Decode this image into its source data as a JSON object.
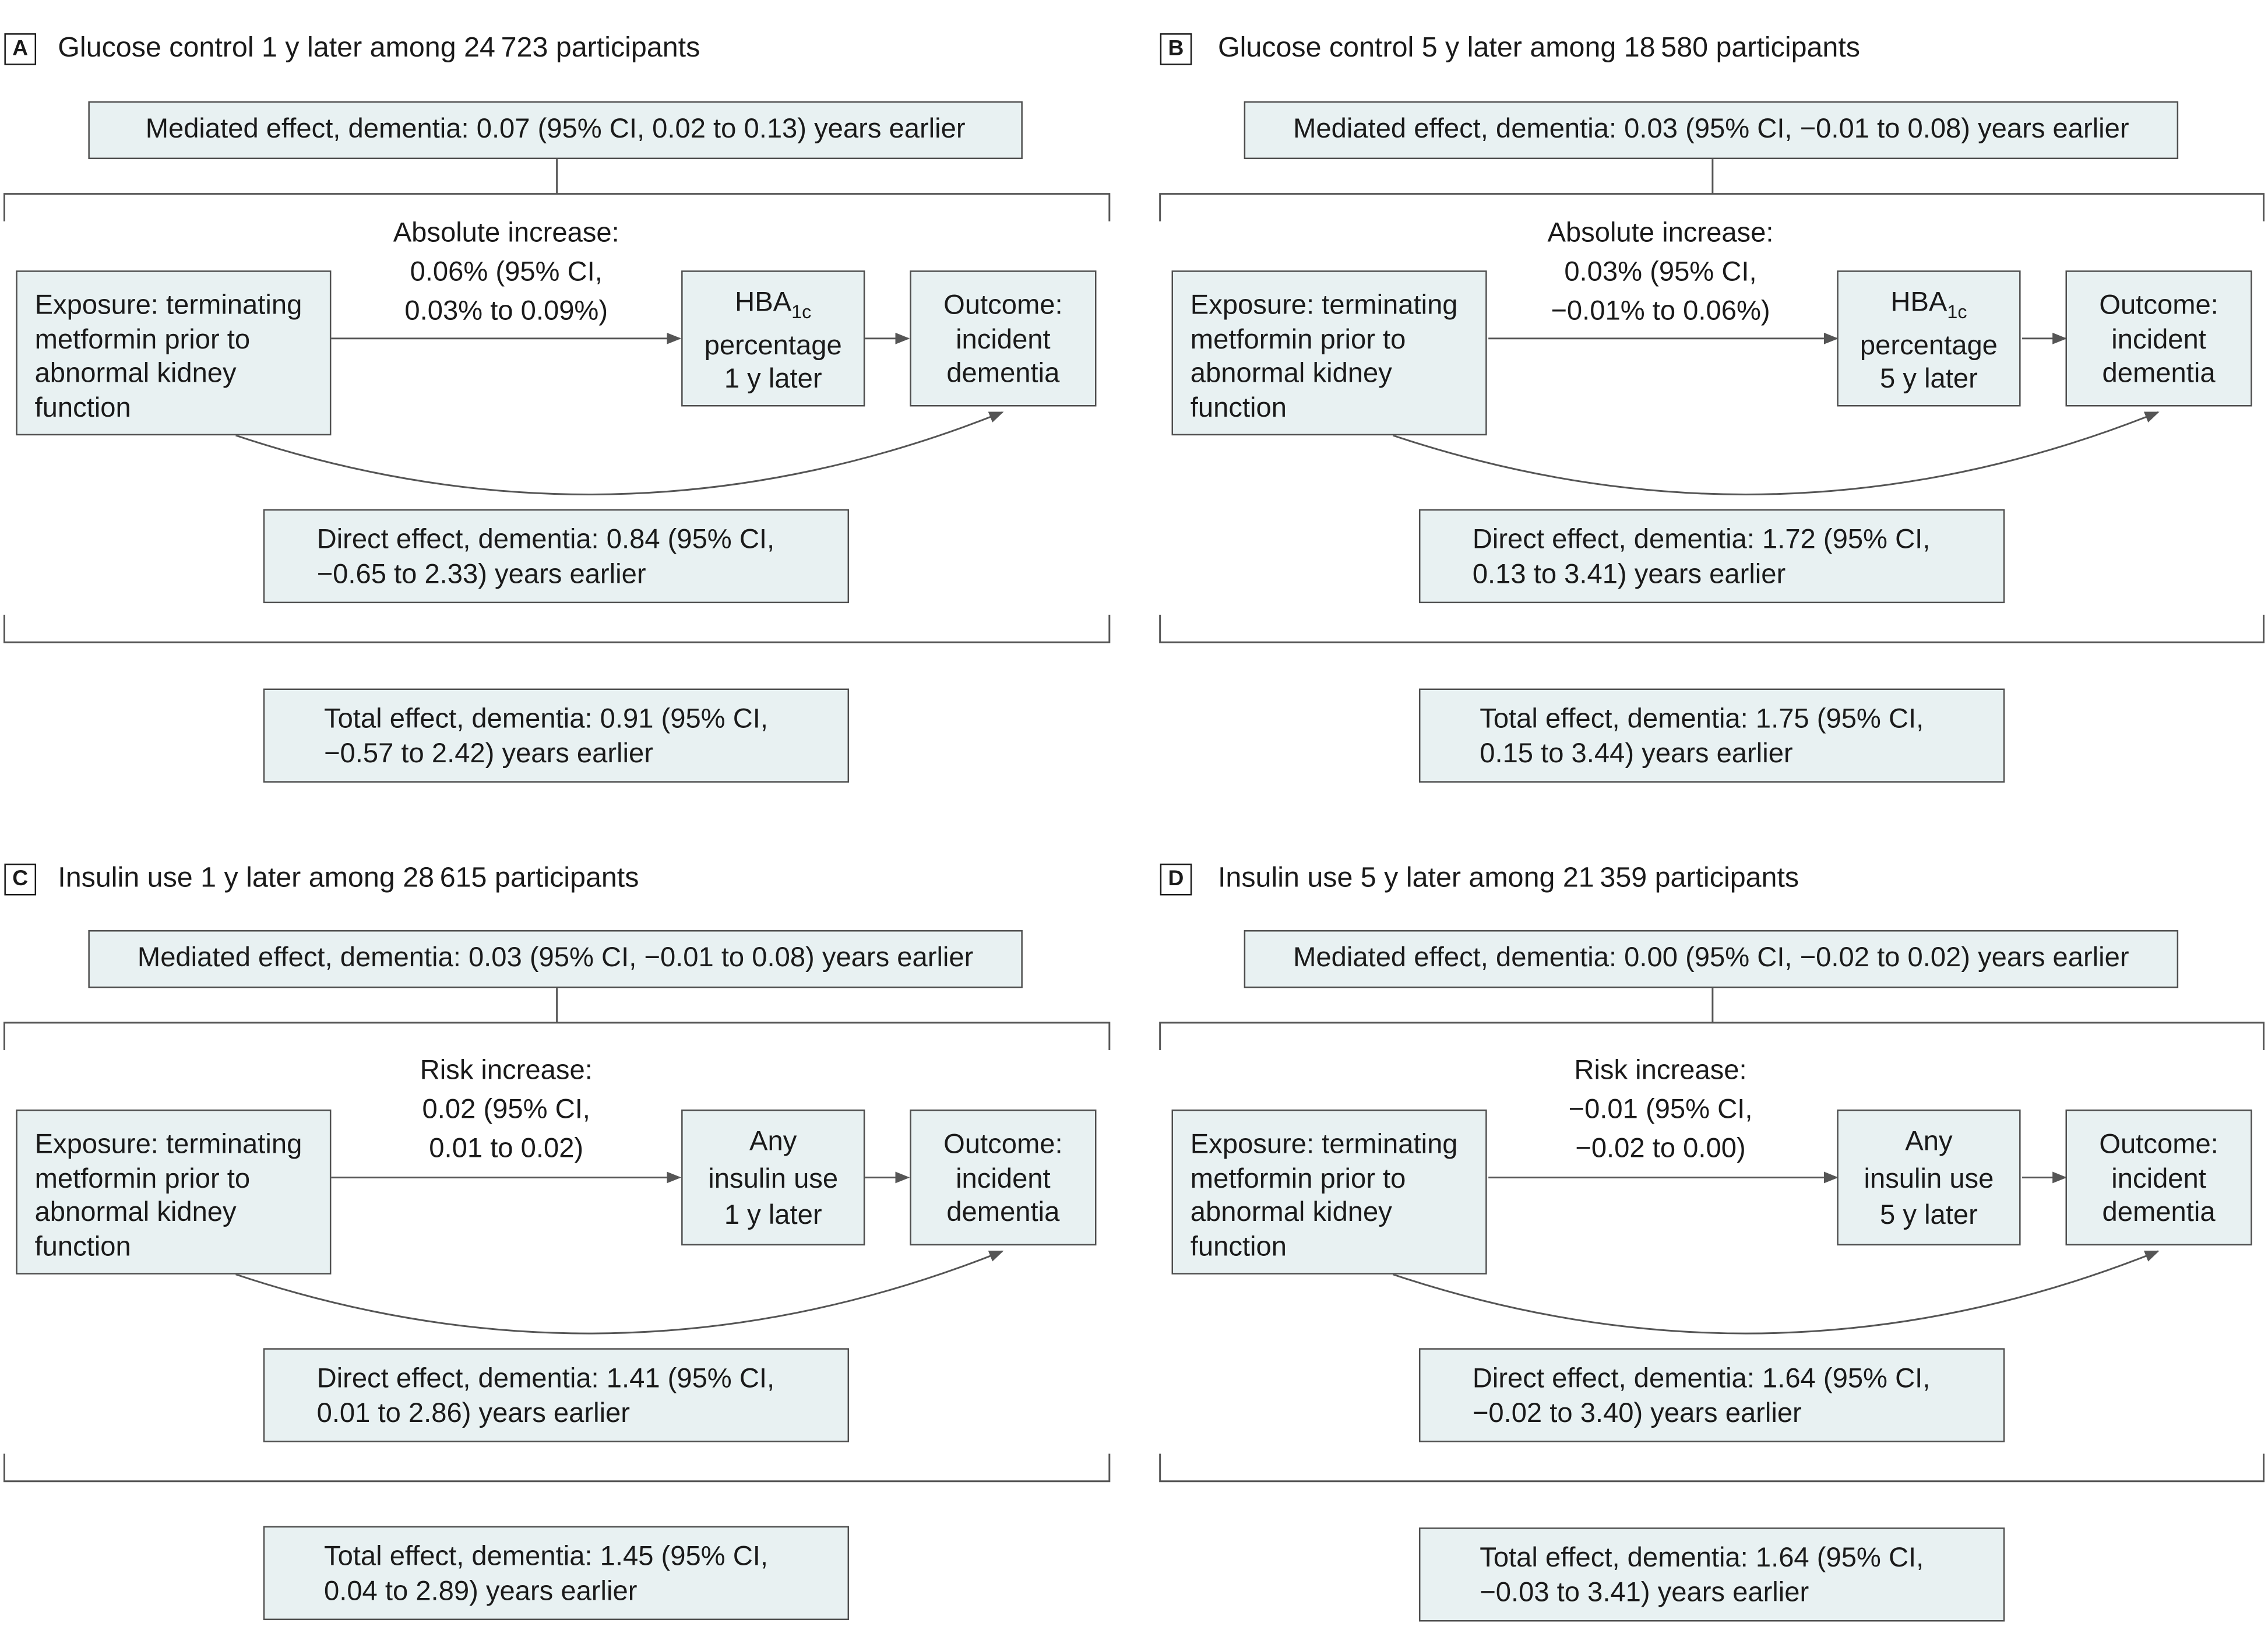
{
  "colors": {
    "box_fill": "#e8f1f2",
    "line": "#555555"
  },
  "panels": [
    {
      "letter": "A",
      "title": "Glucose control 1 y later among 24 723 participants",
      "mediated": "Mediated effect, dementia: 0.07 (95% CI, 0.02 to 0.13) years earlier",
      "edge_label": [
        "Absolute increase:",
        "0.06% (95% CI,",
        "0.03% to 0.09%)"
      ],
      "exposure": [
        "Exposure: terminating",
        "metformin prior to",
        "abnormal kidney",
        "function"
      ],
      "mediator_main": "HBA",
      "mediator_sub": "1c",
      "mediator_lines": [
        "percentage",
        "1 y later"
      ],
      "outcome": [
        "Outcome:",
        "incident",
        "dementia"
      ],
      "direct": [
        "Direct effect, dementia: 0.84 (95% CI,",
        "−0.65 to 2.33) years earlier"
      ],
      "total": [
        "Total effect, dementia: 0.91 (95% CI,",
        "−0.57 to 2.42) years earlier"
      ]
    },
    {
      "letter": "B",
      "title": "Glucose control 5 y later among 18 580 participants",
      "mediated": "Mediated effect, dementia: 0.03 (95% CI, −0.01 to 0.08) years earlier",
      "edge_label": [
        "Absolute increase:",
        "0.03% (95% CI,",
        "−0.01% to 0.06%)"
      ],
      "exposure": [
        "Exposure: terminating",
        "metformin prior to",
        "abnormal kidney",
        "function"
      ],
      "mediator_main": "HBA",
      "mediator_sub": "1c",
      "mediator_lines": [
        "percentage",
        "5 y later"
      ],
      "outcome": [
        "Outcome:",
        "incident",
        "dementia"
      ],
      "direct": [
        "Direct effect, dementia: 1.72 (95% CI,",
        "0.13 to 3.41) years earlier"
      ],
      "total": [
        "Total effect, dementia: 1.75 (95% CI,",
        "0.15 to 3.44) years earlier"
      ]
    },
    {
      "letter": "C",
      "title": "Insulin use 1 y later among 28 615 participants",
      "mediated": "Mediated effect, dementia: 0.03 (95% CI, −0.01 to 0.08) years earlier",
      "edge_label": [
        "Risk increase:",
        "0.02 (95% CI,",
        "0.01 to 0.02)"
      ],
      "exposure": [
        "Exposure: terminating",
        "metformin prior to",
        "abnormal kidney",
        "function"
      ],
      "mediator_lines": [
        "Any",
        "insulin use",
        "1 y later"
      ],
      "outcome": [
        "Outcome:",
        "incident",
        "dementia"
      ],
      "direct": [
        "Direct effect, dementia: 1.41 (95% CI,",
        "0.01 to 2.86) years earlier"
      ],
      "total": [
        "Total effect, dementia: 1.45 (95% CI,",
        "0.04 to 2.89) years earlier"
      ]
    },
    {
      "letter": "D",
      "title": "Insulin use 5 y later among 21 359 participants",
      "mediated": "Mediated effect, dementia: 0.00 (95% CI, −0.02 to 0.02) years earlier",
      "edge_label": [
        "Risk increase:",
        "−0.01 (95% CI,",
        "−0.02 to 0.00)"
      ],
      "exposure": [
        "Exposure: terminating",
        "metformin prior to",
        "abnormal kidney",
        "function"
      ],
      "mediator_lines": [
        "Any",
        "insulin use",
        "5 y later"
      ],
      "outcome": [
        "Outcome:",
        "incident",
        "dementia"
      ],
      "direct": [
        "Direct effect, dementia: 1.64 (95% CI,",
        "−0.02 to 3.40) years earlier"
      ],
      "total": [
        "Total effect, dementia: 1.64 (95% CI,",
        "−0.03 to 3.41) years earlier"
      ]
    }
  ]
}
